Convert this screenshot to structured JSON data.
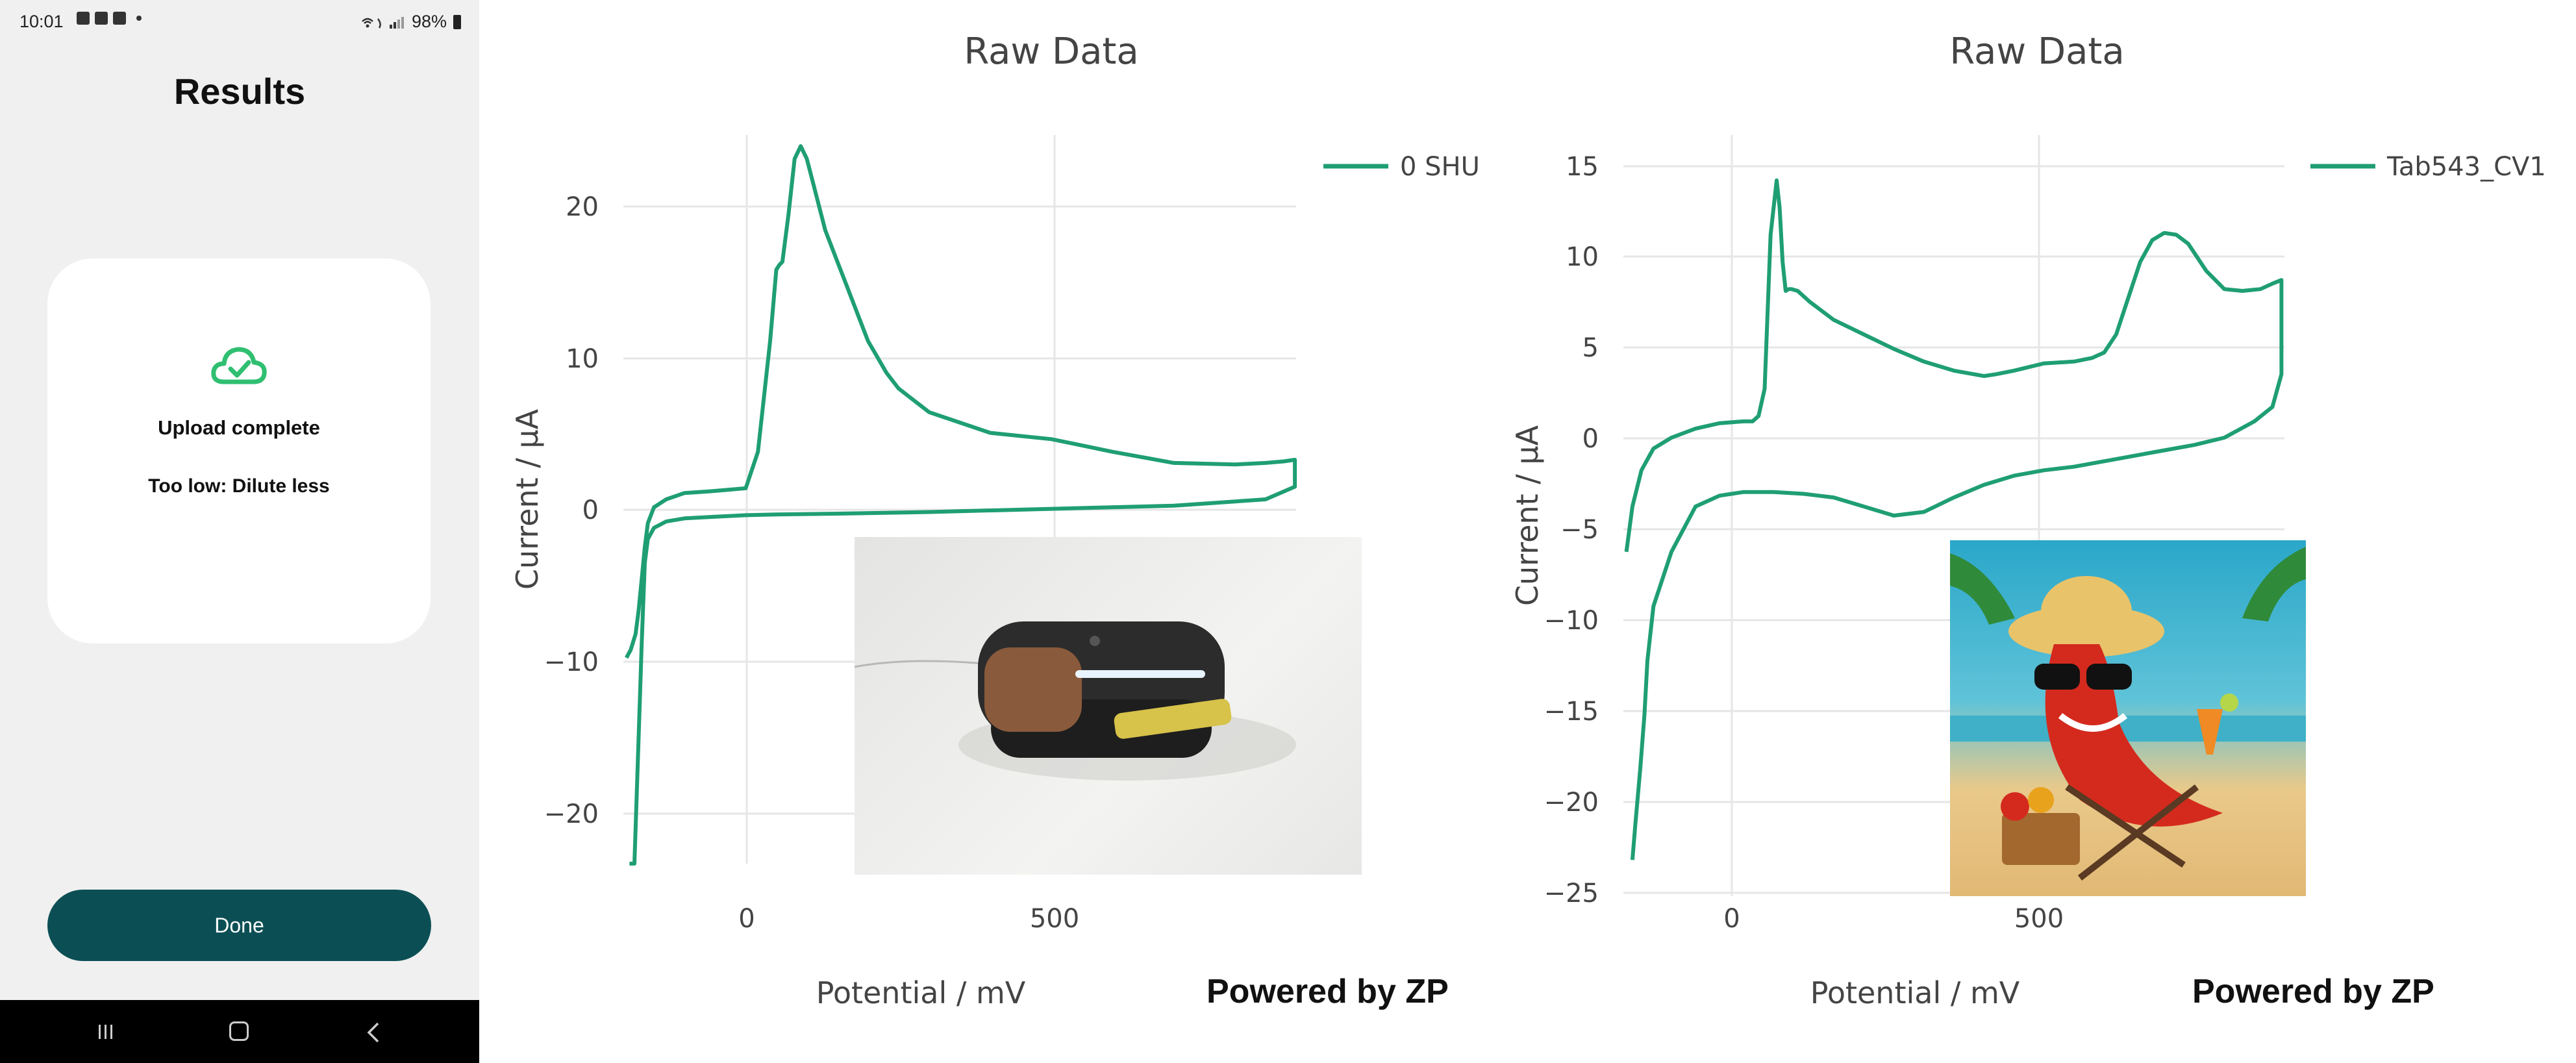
{
  "statusbar": {
    "time": "10:01",
    "battery": "98%"
  },
  "phone": {
    "title": "Results",
    "card": {
      "status": "Upload complete",
      "message": "Too low: Dilute less",
      "icon": "cloud-check-icon"
    },
    "done_label": "Done",
    "nav": {
      "recents": "recents-icon",
      "home": "home-icon",
      "back": "back-icon"
    },
    "accent": "#2fbf71",
    "button_color": "#0b4f55"
  },
  "footer_text": "Powered by ZP",
  "chart_data": [
    {
      "type": "line",
      "title": "Raw Data",
      "xlabel": "Potential / mV",
      "ylabel": "Current / µA",
      "xticks": [
        "0",
        "500"
      ],
      "yticks": [
        "20",
        "10",
        "0",
        "−10",
        "−20"
      ],
      "xlim": [
        -200,
        900
      ],
      "ylim": [
        -23,
        23
      ],
      "legend": "top-right",
      "grid": true,
      "line_color": "#1f9e74",
      "series": [
        {
          "name": "0 SHU_",
          "x": [
            -190,
            -182,
            -175,
            -170,
            -165,
            -160,
            -150,
            -130,
            -100,
            -50,
            0,
            50,
            150,
            300,
            500,
            700,
            850,
            898,
            898,
            880,
            850,
            800,
            700,
            600,
            500,
            400,
            300,
            250,
            230,
            215,
            200,
            180,
            165,
            150,
            130,
            120,
            110,
            100,
            90,
            80,
            70,
            60,
            55,
            50,
            40,
            20,
            0,
            -30,
            -60,
            -100,
            -130,
            -150,
            -160,
            -165,
            -170,
            -175,
            -180,
            -188,
            -195
          ],
          "y": [
            -23,
            -23,
            -15,
            -9,
            -4,
            -2.5,
            -1.8,
            -1.4,
            -1.2,
            -1.1,
            -1,
            -0.95,
            -0.9,
            -0.8,
            -0.6,
            -0.4,
            0,
            0.8,
            2.5,
            2.4,
            2.3,
            2.2,
            2.3,
            3,
            3.8,
            4.2,
            5.5,
            7,
            8,
            9,
            10,
            12,
            13.5,
            15,
            17,
            18.5,
            20,
            21.5,
            22.3,
            21.5,
            18,
            15,
            14.8,
            14.5,
            10,
            3,
            0.7,
            0.6,
            0.5,
            0.4,
            0,
            -0.5,
            -1.5,
            -3,
            -5,
            -7,
            -8.5,
            -9.5,
            -10
          ]
        }
      ]
    },
    {
      "type": "line",
      "title": "Raw Data",
      "xlabel": "Potential / mV",
      "ylabel": "Current / µA",
      "xticks": [
        "0",
        "500"
      ],
      "yticks": [
        "15",
        "10",
        "5",
        "0",
        "−5",
        "−10",
        "−15",
        "−20",
        "−25"
      ],
      "xlim": [
        -200,
        900
      ],
      "ylim": [
        -25,
        17
      ],
      "legend": "top-right",
      "grid": true,
      "line_color": "#1f9e74",
      "series": [
        {
          "name": "Tab543_CV1",
          "x": [
            -185,
            -180,
            -172,
            -165,
            -160,
            -150,
            -120,
            -80,
            -40,
            0,
            50,
            100,
            150,
            200,
            250,
            300,
            350,
            400,
            450,
            500,
            550,
            600,
            650,
            700,
            750,
            800,
            850,
            880,
            895,
            895,
            880,
            860,
            830,
            800,
            770,
            740,
            720,
            700,
            680,
            660,
            640,
            620,
            600,
            580,
            550,
            500,
            450,
            420,
            400,
            350,
            300,
            250,
            200,
            150,
            110,
            90,
            80,
            75,
            70,
            65,
            60,
            55,
            45,
            35,
            25,
            15,
            0,
            -40,
            -80,
            -120,
            -150,
            -170,
            -185,
            -195
          ],
          "y": [
            -23,
            -21,
            -18,
            -15,
            -12,
            -9,
            -6,
            -3.5,
            -2.9,
            -2.7,
            -2.7,
            -2.8,
            -3,
            -3.5,
            -4,
            -3.8,
            -3,
            -2.3,
            -1.8,
            -1.5,
            -1.3,
            -1,
            -0.7,
            -0.4,
            -0.1,
            0.3,
            1.2,
            2,
            3.8,
            9,
            8.8,
            8.5,
            8.4,
            8.5,
            9.5,
            11,
            11.5,
            11.6,
            11.2,
            10,
            8,
            6,
            5,
            4.7,
            4.5,
            4.4,
            4,
            3.8,
            3.7,
            4,
            4.5,
            5.2,
            6,
            6.8,
            7.8,
            8.4,
            8.5,
            8.5,
            8.4,
            10,
            13,
            14.5,
            11.5,
            3,
            1.5,
            1.2,
            1.2,
            1.1,
            0.8,
            0.3,
            -0.3,
            -1.5,
            -3.5,
            -6
          ]
        }
      ]
    }
  ]
}
